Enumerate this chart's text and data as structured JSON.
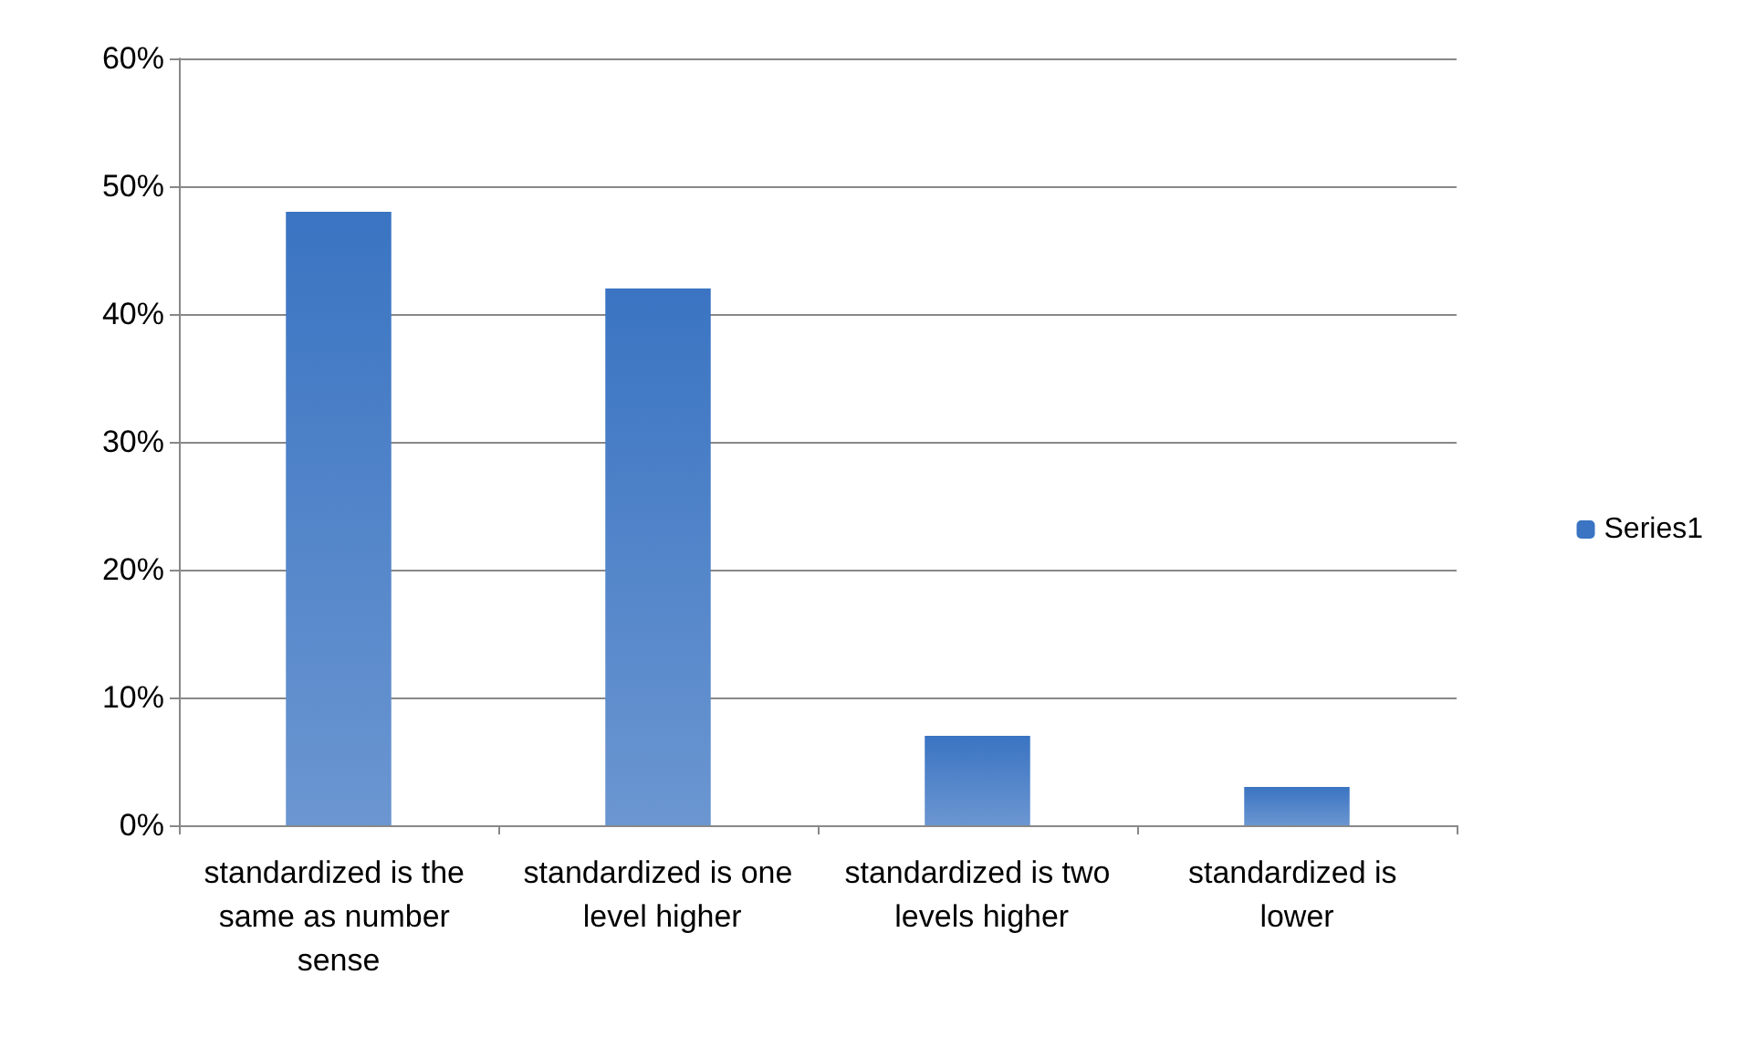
{
  "chart_data": {
    "type": "bar",
    "categories": [
      "standardized is the same as number sense",
      "standardized is one level higher",
      "standardized is two levels higher",
      "standardized is lower"
    ],
    "series": [
      {
        "name": "Series1",
        "color": "#3a74c2",
        "values": [
          48,
          42,
          7,
          3
        ]
      }
    ],
    "ylim": [
      0,
      60
    ],
    "yticks": [
      {
        "value": 0,
        "label": "0%"
      },
      {
        "value": 10,
        "label": "10%"
      },
      {
        "value": 20,
        "label": "20%"
      },
      {
        "value": 30,
        "label": "30%"
      },
      {
        "value": 40,
        "label": "40%"
      },
      {
        "value": 50,
        "label": "50%"
      },
      {
        "value": 60,
        "label": "60%"
      }
    ],
    "grid": "y",
    "legend": "right"
  }
}
